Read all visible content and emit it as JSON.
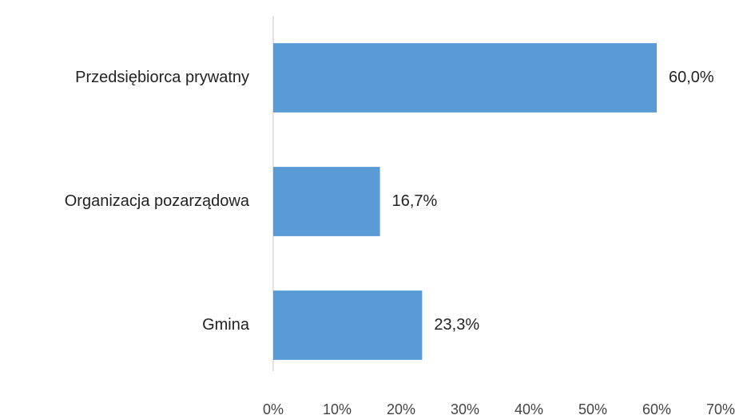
{
  "chart_data": {
    "type": "bar",
    "orientation": "horizontal",
    "categories": [
      "Przedsiębiorca prywatny",
      "Organizacja pozarządowa",
      "Gmina"
    ],
    "values": [
      60.0,
      16.7,
      23.3
    ],
    "value_labels": [
      "60,0%",
      "16,7%",
      "23,3%"
    ],
    "color": "#5b9bd5",
    "xlim": [
      0,
      70
    ],
    "xticks": [
      {
        "value": 0,
        "label": "0%"
      },
      {
        "value": 10,
        "label": "10%"
      },
      {
        "value": 20,
        "label": "20%"
      },
      {
        "value": 30,
        "label": "30%"
      },
      {
        "value": 40,
        "label": "40%"
      },
      {
        "value": 50,
        "label": "50%"
      },
      {
        "value": 60,
        "label": "60%"
      },
      {
        "value": 70,
        "label": "70%"
      }
    ],
    "grid": false
  }
}
